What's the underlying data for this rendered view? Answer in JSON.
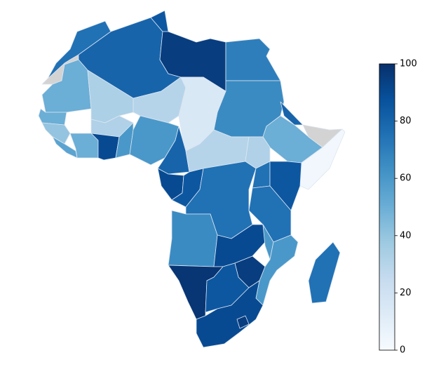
{
  "chart_data": {
    "type": "choropleth",
    "colormap": "Blues",
    "values": [
      null,
      75,
      80,
      85,
      95,
      70,
      65,
      80,
      50,
      null,
      3,
      50,
      33,
      30,
      15,
      50,
      40,
      55,
      50,
      32,
      90,
      60,
      60,
      80,
      30,
      32,
      90,
      85,
      75,
      75,
      85,
      75,
      65,
      90,
      60,
      60,
      95,
      98,
      85,
      90,
      95,
      75
    ],
    "ylim": [
      0,
      100
    ],
    "yticks": [
      0,
      20,
      40,
      60,
      80,
      100
    ]
  }
}
